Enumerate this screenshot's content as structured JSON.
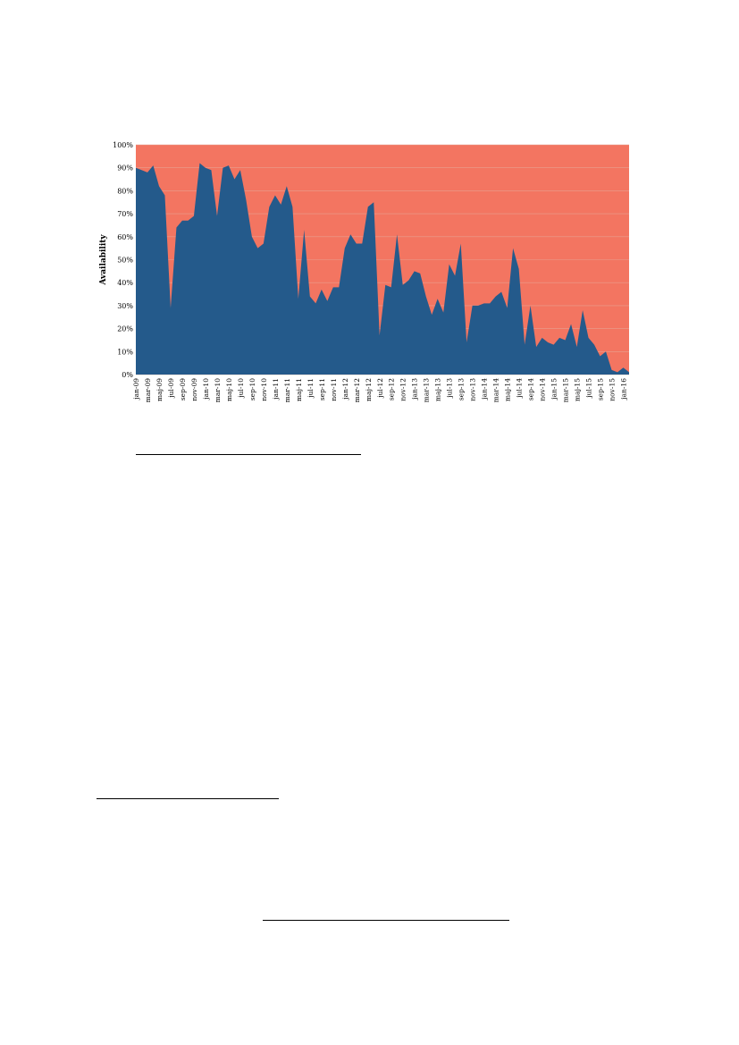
{
  "colors": {
    "available": "#245a8b",
    "unavailable": "#f37561",
    "grid": "#e8a090"
  },
  "chart_data": {
    "type": "area",
    "ylabel": "Availability",
    "xlabel": "",
    "ylim": [
      0,
      100
    ],
    "y_ticks": [
      "0%",
      "10%",
      "20%",
      "30%",
      "40%",
      "50%",
      "60%",
      "70%",
      "80%",
      "90%",
      "100%"
    ],
    "grid": true,
    "legend": "none",
    "x_tick_labels": [
      "jan-09",
      "mar-09",
      "maj-09",
      "jul-09",
      "sep-09",
      "nov-09",
      "jan-10",
      "mar-10",
      "maj-10",
      "jul-10",
      "sep-10",
      "nov-10",
      "jan-11",
      "mar-11",
      "maj-11",
      "jul-11",
      "sep-11",
      "nov-11",
      "jan-12",
      "mar-12",
      "maj-12",
      "jul-12",
      "sep-12",
      "nov-12",
      "jan-13",
      "mar-13",
      "maj-13",
      "jul-13",
      "sep-13",
      "nov-13",
      "jan-14",
      "mar-14",
      "maj-14",
      "jul-14",
      "sep-14",
      "nov-14",
      "jan-15",
      "mar-15",
      "maj-15",
      "jul-15",
      "sep-15",
      "nov-15",
      "jan-16"
    ],
    "series": [
      {
        "values": [
          90,
          89,
          88,
          91,
          82,
          78,
          29,
          64,
          67,
          67,
          69,
          92,
          90,
          89,
          69,
          90,
          91,
          85,
          89,
          76,
          60,
          55,
          57,
          73,
          78,
          74,
          82,
          73,
          33,
          63,
          34,
          31,
          37,
          32,
          38,
          38,
          55,
          61,
          57,
          57,
          73,
          75,
          17,
          39,
          38,
          61,
          39,
          41,
          45,
          44,
          34,
          26,
          33,
          27,
          48,
          43,
          57,
          14,
          30,
          30,
          31,
          31,
          34,
          36,
          29,
          55,
          46,
          13,
          30,
          12,
          16,
          14,
          13,
          16,
          15,
          22,
          12,
          28,
          16,
          13,
          8,
          10,
          2,
          1,
          3,
          1
        ],
        "unit": "%"
      }
    ]
  }
}
